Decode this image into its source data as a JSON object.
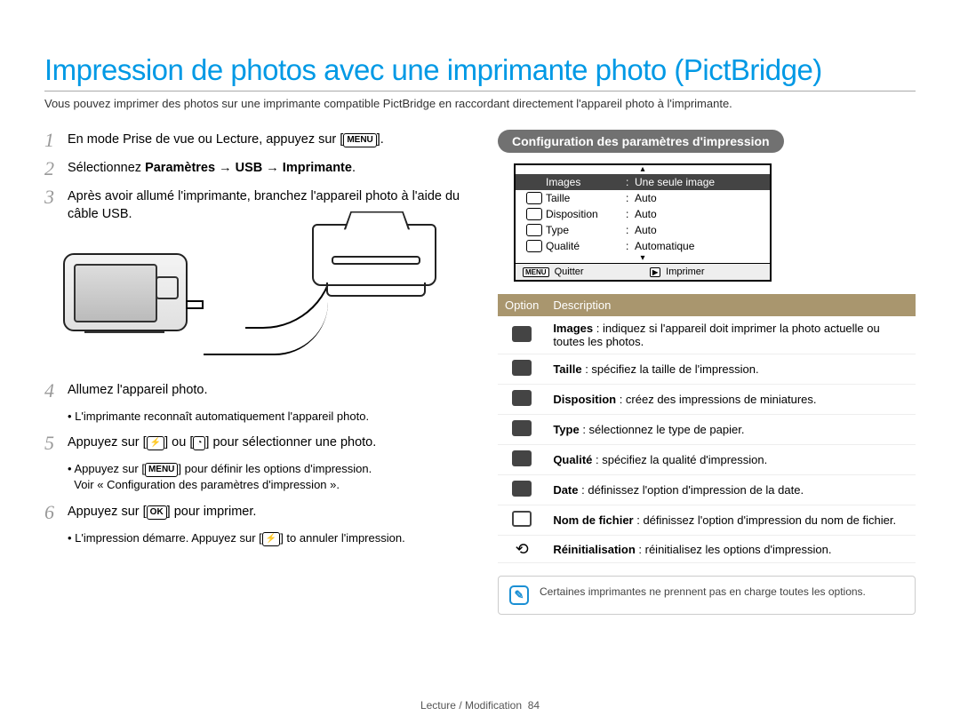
{
  "title": "Impression de photos avec une imprimante photo (PictBridge)",
  "intro": "Vous pouvez imprimer des photos sur une imprimante compatible PictBridge en raccordant directement l'appareil photo à l'imprimante.",
  "menu_badge": "MENU",
  "ok_badge": "OK",
  "steps": {
    "s1_a": "En mode Prise de vue ou Lecture, appuyez sur [",
    "s1_b": "].",
    "s2_a": "Sélectionnez ",
    "s2_bold": "Paramètres → USB → Imprimante",
    "s2_b": ".",
    "s3": "Après avoir allumé l'imprimante, branchez l'appareil photo à l'aide du câble USB.",
    "s4": "Allumez l'appareil photo.",
    "s4_sub": "L'imprimante reconnaît automatiquement l'appareil photo.",
    "s5_a": "Appuyez sur [",
    "s5_mid": "] ou [",
    "s5_b": "] pour sélectionner une photo.",
    "s5_sub1_a": "Appuyez sur [",
    "s5_sub1_b": "] pour définir les options d'impression.",
    "s5_sub2": "Voir « Configuration des paramètres d'impression ».",
    "s6_a": "Appuyez sur [",
    "s6_b": "] pour imprimer.",
    "s6_sub_a": "L'impression démarre. Appuyez sur [",
    "s6_sub_b": "] to annuler l'impression."
  },
  "right_heading": "Configuration des paramètres d'impression",
  "screen": {
    "rows": [
      {
        "label": "Images",
        "value": "Une seule image",
        "selected": true
      },
      {
        "label": "Taille",
        "value": "Auto",
        "selected": false
      },
      {
        "label": "Disposition",
        "value": "Auto",
        "selected": false
      },
      {
        "label": "Type",
        "value": "Auto",
        "selected": false
      },
      {
        "label": "Qualité",
        "value": "Automatique",
        "selected": false
      }
    ],
    "footer_left_label": "Quitter",
    "footer_left_badge": "MENU",
    "footer_right_label": "Imprimer",
    "footer_right_badge": "▶"
  },
  "table": {
    "col_option": "Option",
    "col_desc": "Description",
    "rows": [
      {
        "term": "Images",
        "desc": " : indiquez si l'appareil doit imprimer la photo actuelle ou toutes les photos."
      },
      {
        "term": "Taille",
        "desc": " : spécifiez la taille de l'impression."
      },
      {
        "term": "Disposition",
        "desc": " : créez des impressions de miniatures."
      },
      {
        "term": "Type",
        "desc": " : sélectionnez le type de papier."
      },
      {
        "term": "Qualité",
        "desc": " : spécifiez la qualité d'impression."
      },
      {
        "term": "Date",
        "desc": " : définissez l'option d'impression de la date."
      },
      {
        "term": "Nom de fichier",
        "desc": " : définissez l'option d'impression du nom de fichier."
      },
      {
        "term": "Réinitialisation",
        "desc": " : réinitialisez les options d'impression."
      }
    ]
  },
  "note_text": "Certaines imprimantes ne prennent pas en charge toutes les options.",
  "footer": {
    "section": "Lecture / Modification",
    "page": "84"
  },
  "colors": {
    "title": "#0099e5",
    "pill_bg": "#717171",
    "table_header_bg": "#a9966e",
    "note_border": "#1a8fd4"
  }
}
